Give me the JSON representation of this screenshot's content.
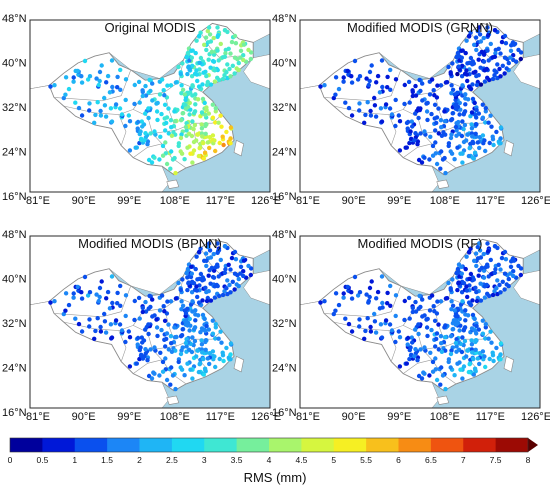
{
  "figure": {
    "panels": [
      {
        "id": "original",
        "title": "Original MODIS",
        "level": 4.6
      },
      {
        "id": "grnn",
        "title": "Modified MODIS (GRNN)",
        "level": 2.0
      },
      {
        "id": "bpnn",
        "title": "Modified MODIS (BPNN)",
        "level": 2.4
      },
      {
        "id": "rf",
        "title": "Modified MODIS (RF)",
        "level": 2.3
      }
    ],
    "lat_labels": [
      "48°N",
      "40°N",
      "32°N",
      "24°N",
      "16°N"
    ],
    "lon_labels": [
      "81°E",
      "90°E",
      "99°E",
      "108°E",
      "117°E",
      "126°E"
    ],
    "colors": {
      "land": "#ffffff",
      "sea": "#a9d3e5",
      "border": "#8a8a8a",
      "frame": "#2a2a2a"
    }
  },
  "colorbar": {
    "title": "RMS (mm)",
    "tick_labels": [
      "0",
      "0.5",
      "1",
      "1.5",
      "2",
      "2.5",
      "3",
      "3.5",
      "4",
      "4.5",
      "5",
      "5.5",
      "6",
      "6.5",
      "7",
      "7.5",
      "8"
    ],
    "colors": [
      "#00009c",
      "#0018d8",
      "#0a50ee",
      "#1c86f6",
      "#1fb5f5",
      "#20d8f2",
      "#3fe7d3",
      "#76ef9c",
      "#a9f56c",
      "#d6f63f",
      "#f6ef23",
      "#f8c01c",
      "#f78c14",
      "#ef5410",
      "#d1200a",
      "#9c0a04"
    ]
  }
}
